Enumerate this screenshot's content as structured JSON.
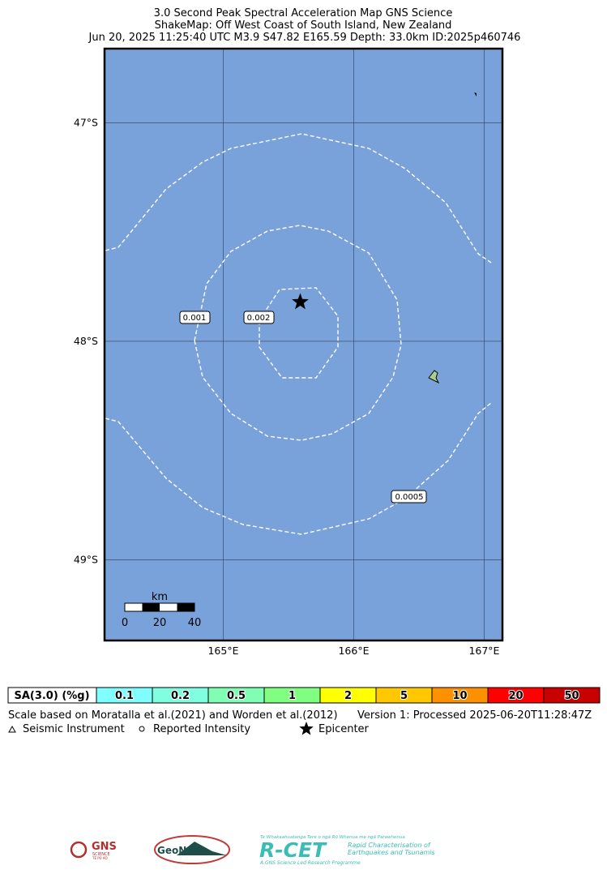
{
  "header": {
    "title": "3.0 Second Peak Spectral Acceleration Map GNS Science",
    "subtitle": "ShakeMap: Off West Coast of South Island, New Zealand",
    "event": "Jun 20, 2025 11:25:40 UTC M3.9 S47.82 E165.59 Depth: 33.0km ID:2025p460746"
  },
  "map": {
    "lat_range": [
      -46.66,
      -49.37
    ],
    "lon_range": [
      164.09,
      167.14
    ],
    "lat_lines": [
      {
        "value": -47,
        "label": "47°S"
      },
      {
        "value": -48,
        "label": "48°S"
      },
      {
        "value": -49,
        "label": "49°S"
      }
    ],
    "lon_lines": [
      {
        "value": 165,
        "label": "165°E"
      },
      {
        "value": 166,
        "label": "166°E"
      },
      {
        "value": 167,
        "label": "167°E"
      }
    ],
    "epicenter": {
      "lat": -47.82,
      "lon": 165.59
    },
    "contour_labels": [
      "0.001",
      "0.002",
      "0.0005"
    ],
    "scale_bar": {
      "unit": "km",
      "ticks": [
        "0",
        "20",
        "40"
      ]
    }
  },
  "legend": {
    "title": "SA(3.0) (%g)",
    "bins": [
      {
        "label": "0.1",
        "color": "#80ffff"
      },
      {
        "label": "0.2",
        "color": "#7fffdf"
      },
      {
        "label": "0.5",
        "color": "#80ffb4"
      },
      {
        "label": "1",
        "color": "#80ff80"
      },
      {
        "label": "2",
        "color": "#ffff00"
      },
      {
        "label": "5",
        "color": "#ffc800"
      },
      {
        "label": "10",
        "color": "#ff9100"
      },
      {
        "label": "20",
        "color": "#ff0000"
      },
      {
        "label": "50",
        "color": "#c80000"
      }
    ],
    "scale_note": "Scale based on Moratalla et al.(2021) and Worden et al.(2012)",
    "version": "Version 1: Processed 2025-06-20T11:28:47Z",
    "symbols": [
      "Seismic Instrument",
      "Reported Intensity",
      "Epicenter"
    ]
  },
  "logos": {
    "gns": "GNS",
    "gns_sub": "SCIENCE",
    "gns_maori": "TE PŪ AO",
    "geonet": "GeoNet",
    "rcet_tagline": "Te Whakaahuatanga Tere o ngā Rū Whenua me ngā Parawhenua",
    "rcet": "R-CET",
    "rcet_line1": "Rapid Characterisation of",
    "rcet_line2": "Earthquakes and Tsunamis",
    "rcet_footer": "A GNS Science Led Research Programme"
  }
}
